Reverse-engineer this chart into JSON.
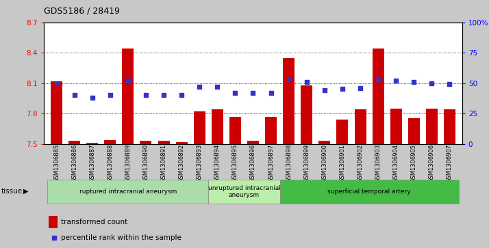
{
  "title": "GDS5186 / 28419",
  "samples": [
    "GSM1306885",
    "GSM1306886",
    "GSM1306887",
    "GSM1306888",
    "GSM1306889",
    "GSM1306890",
    "GSM1306891",
    "GSM1306892",
    "GSM1306893",
    "GSM1306894",
    "GSM1306895",
    "GSM1306896",
    "GSM1306897",
    "GSM1306898",
    "GSM1306899",
    "GSM1306900",
    "GSM1306901",
    "GSM1306902",
    "GSM1306903",
    "GSM1306904",
    "GSM1306905",
    "GSM1306906",
    "GSM1306907"
  ],
  "transformed_count": [
    8.12,
    7.53,
    7.51,
    7.54,
    8.44,
    7.53,
    7.53,
    7.52,
    7.82,
    7.84,
    7.77,
    7.53,
    7.77,
    8.35,
    8.08,
    7.53,
    7.74,
    7.84,
    8.44,
    7.85,
    7.75,
    7.85,
    7.84
  ],
  "percentile_rank": [
    50,
    40,
    38,
    40,
    52,
    40,
    40,
    40,
    47,
    47,
    42,
    42,
    42,
    53,
    51,
    44,
    45,
    46,
    53,
    52,
    51,
    50,
    49
  ],
  "ylim_left": [
    7.5,
    8.7
  ],
  "ylim_right": [
    0,
    100
  ],
  "yticks_left": [
    7.5,
    7.8,
    8.1,
    8.4,
    8.7
  ],
  "yticks_right": [
    0,
    25,
    50,
    75,
    100
  ],
  "bar_color": "#cc0000",
  "dot_color": "#3333cc",
  "background_color": "#c8c8c8",
  "plot_bg_color": "#ffffff",
  "groups": [
    {
      "label": "ruptured intracranial aneurysm",
      "start": 0,
      "end": 9,
      "color": "#aaddaa"
    },
    {
      "label": "unruptured intracranial\naneurysm",
      "start": 9,
      "end": 13,
      "color": "#bbeeaa"
    },
    {
      "label": "superficial temporal artery",
      "start": 13,
      "end": 23,
      "color": "#44bb44"
    }
  ],
  "tissue_label": "tissue",
  "legend_bar_label": "transformed count",
  "legend_dot_label": "percentile rank within the sample"
}
